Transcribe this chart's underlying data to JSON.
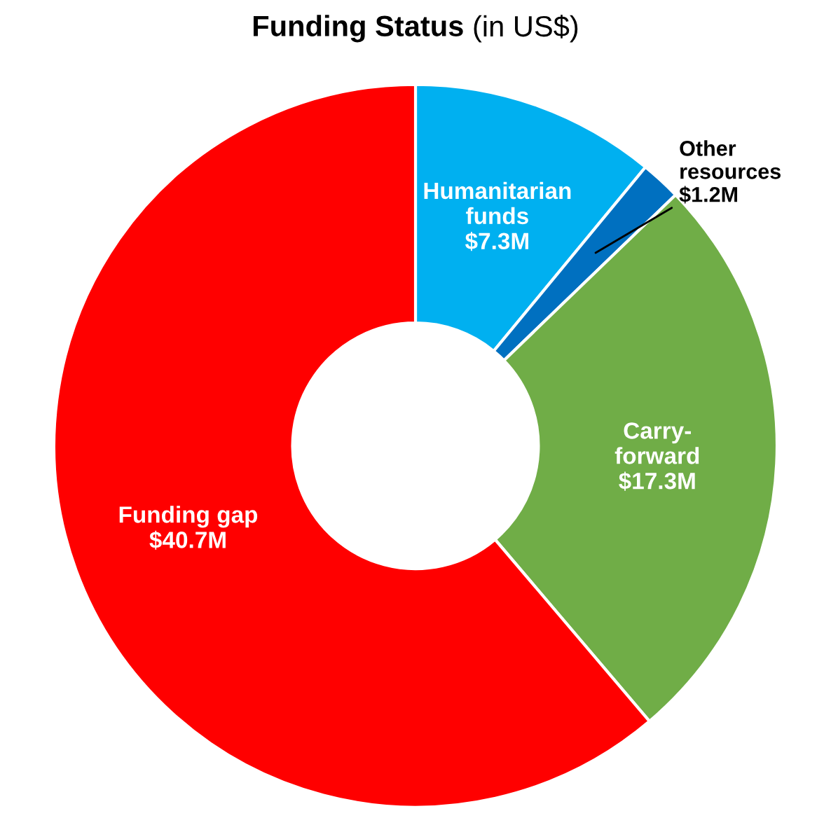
{
  "chart_data": {
    "type": "donut",
    "title": "Funding Status",
    "subtitle": "(in US$)",
    "categories": [
      "Humanitarian\nfunds",
      "Other\nresources",
      "Carry-\nforward",
      "Funding gap"
    ],
    "values": [
      7.3,
      1.2,
      17.3,
      40.7
    ],
    "value_labels": [
      "$7.3M",
      "$1.2M",
      "$17.3M",
      "$40.7M"
    ],
    "colors": [
      "#00b0f0",
      "#0070c0",
      "#70ad47",
      "#ff0000"
    ],
    "legend": false
  }
}
